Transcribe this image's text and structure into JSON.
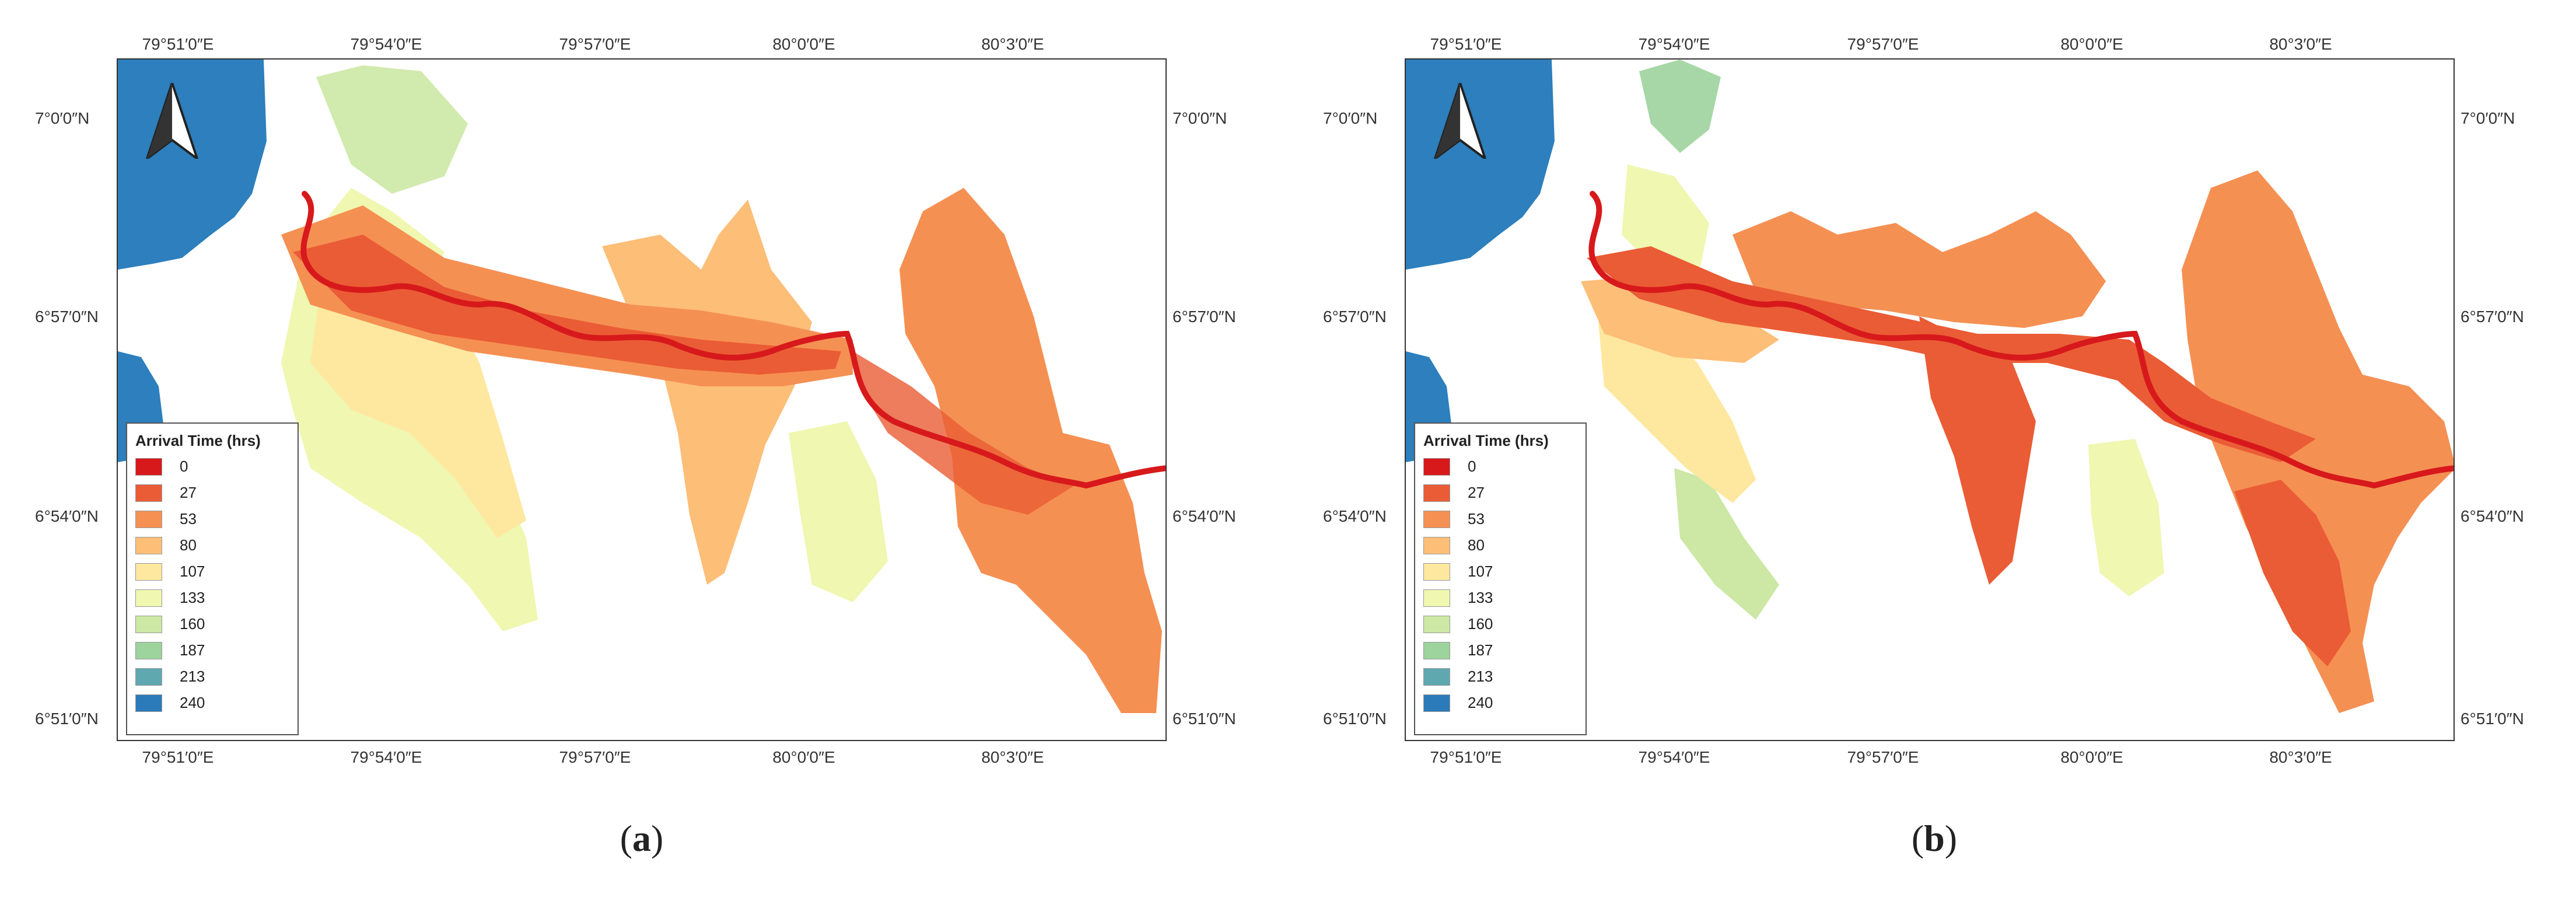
{
  "panels": [
    {
      "id": "a",
      "caption_open": "(",
      "caption_letter": "a",
      "caption_close": ")",
      "legend_title": "Arrival Time (hrs)",
      "legend": [
        {
          "label": "0",
          "color": "#d7191c"
        },
        {
          "label": "27",
          "color": "#ea5c35"
        },
        {
          "label": "53",
          "color": "#f59053"
        },
        {
          "label": "80",
          "color": "#fdbe78"
        },
        {
          "label": "107",
          "color": "#fee8a0"
        },
        {
          "label": "133",
          "color": "#eff7b0"
        },
        {
          "label": "160",
          "color": "#cce8a4"
        },
        {
          "label": "187",
          "color": "#9dd39d"
        },
        {
          "label": "213",
          "color": "#5fa8b0"
        },
        {
          "label": "240",
          "color": "#2b7bba"
        }
      ],
      "x_ticks": [
        "79°51′0″E",
        "79°54′0″E",
        "79°57′0″E",
        "80°0′0″E",
        "80°3′0″E"
      ],
      "y_ticks_left": [
        "7°0′0″N",
        "6°57′0″N",
        "6°54′0″N",
        "6°51′0″N"
      ],
      "y_ticks_right": [
        "7°0′0″N",
        "6°57′0″N",
        "6°54′0″N",
        "6°51′0″N"
      ]
    },
    {
      "id": "b",
      "caption_open": "(",
      "caption_letter": "b",
      "caption_close": ")",
      "legend_title": "Arrival Time (hrs)",
      "legend": [
        {
          "label": "0",
          "color": "#d7191c"
        },
        {
          "label": "27",
          "color": "#ea5c35"
        },
        {
          "label": "53",
          "color": "#f59053"
        },
        {
          "label": "80",
          "color": "#fdbe78"
        },
        {
          "label": "107",
          "color": "#fee8a0"
        },
        {
          "label": "133",
          "color": "#eff7b0"
        },
        {
          "label": "160",
          "color": "#cce8a4"
        },
        {
          "label": "187",
          "color": "#9dd39d"
        },
        {
          "label": "213",
          "color": "#5fa8b0"
        },
        {
          "label": "240",
          "color": "#2b7bba"
        }
      ],
      "x_ticks": [
        "79°51′0″E",
        "79°54′0″E",
        "79°57′0″E",
        "80°0′0″E",
        "80°3′0″E"
      ],
      "y_ticks_left": [
        "7°0′0″N",
        "6°57′0″N",
        "6°54′0″N",
        "6°51′0″N"
      ],
      "y_ticks_right": [
        "7°0′0″N",
        "6°57′0″N",
        "6°54′0″N",
        "6°51′0″N"
      ]
    }
  ],
  "colors": {
    "sea": "#2d7fbd",
    "river": "#d7191c"
  }
}
